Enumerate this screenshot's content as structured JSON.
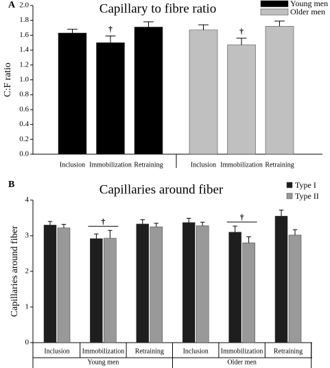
{
  "chart_data": [
    {
      "type": "bar",
      "panel": "A",
      "title": "Capillary to fibre ratio",
      "ylabel": "C:F ratio",
      "categories": [
        "Inclusion",
        "Immobilization",
        "Retraining"
      ],
      "series": [
        {
          "name": "Young men",
          "color": "#000000",
          "values": [
            1.63,
            1.5,
            1.71
          ],
          "errors": [
            0.05,
            0.09,
            0.07
          ]
        },
        {
          "name": "Older men",
          "color": "#c0c0c0",
          "values": [
            1.67,
            1.47,
            1.72
          ],
          "errors": [
            0.07,
            0.09,
            0.07
          ]
        }
      ],
      "annotations": [
        {
          "text": "†",
          "series": 0,
          "index": 1
        },
        {
          "text": "†",
          "series": 1,
          "index": 1
        }
      ],
      "ylim": [
        0,
        2
      ],
      "yticks": [
        {
          "value": 0,
          "label": "0.0"
        },
        0.2,
        0.4,
        0.6,
        0.8,
        {
          "value": 1,
          "label": "1.0"
        },
        1.2,
        1.4,
        1.6,
        1.8,
        {
          "value": 2,
          "label": "2.0"
        }
      ],
      "legend": "top-right"
    },
    {
      "type": "grouped_bar",
      "panel": "B",
      "title": "Capillaries around fiber",
      "ylabel": "Capillaries around fiber",
      "categories": [
        "Inclusion",
        "Immobilization",
        "Retraining",
        "Inclusion",
        "Immobilization",
        "Retraining"
      ],
      "groups": [
        "Young men",
        "Older men"
      ],
      "series": [
        {
          "name": "Type I",
          "color": "#1e1e1e",
          "values": [
            3.3,
            2.92,
            3.33,
            3.37,
            3.1,
            3.55
          ],
          "errors": [
            0.1,
            0.13,
            0.12,
            0.12,
            0.17,
            0.17
          ]
        },
        {
          "name": "Type II",
          "color": "#999999",
          "values": [
            3.22,
            2.93,
            3.25,
            3.28,
            2.8,
            3.02
          ],
          "errors": [
            0.1,
            0.22,
            0.1,
            0.1,
            0.17,
            0.15
          ]
        }
      ],
      "annotations": [
        {
          "text": "†",
          "index": 1
        },
        {
          "text": "†",
          "index": 4
        }
      ],
      "ylim": [
        0,
        4
      ],
      "yticks": [
        0,
        1,
        2,
        3,
        4
      ],
      "legend": "top-right"
    }
  ]
}
